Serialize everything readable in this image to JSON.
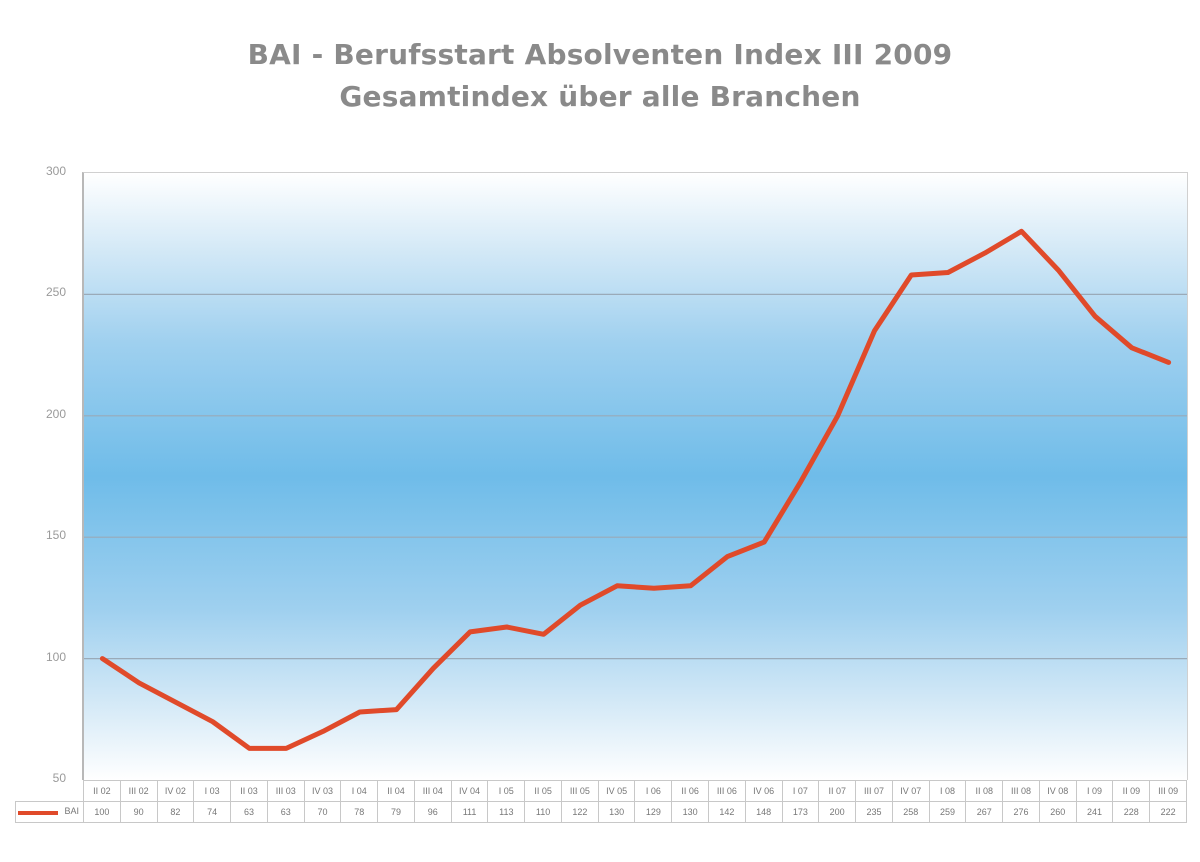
{
  "chart_data": {
    "type": "line",
    "title": "BAI - Berufsstart Absolventen Index III 2009",
    "subtitle": "Gesamtindex über alle Branchen",
    "xlabel": "",
    "ylabel": "",
    "ylim": [
      50,
      300
    ],
    "yticks": [
      50,
      100,
      150,
      200,
      250,
      300
    ],
    "grid": true,
    "legend_position": "bottom-left (data table)",
    "categories": [
      "II 02",
      "III 02",
      "IV 02",
      "I 03",
      "II 03",
      "III 03",
      "IV 03",
      "I 04",
      "II 04",
      "III 04",
      "IV 04",
      "I 05",
      "II 05",
      "III 05",
      "IV 05",
      "I 06",
      "II 06",
      "III 06",
      "IV 06",
      "I 07",
      "II 07",
      "III 07",
      "IV 07",
      "I 08",
      "II 08",
      "III 08",
      "IV 08",
      "I 09",
      "II 09",
      "III 09"
    ],
    "series": [
      {
        "name": "BAI",
        "color": "#e04a2a",
        "values": [
          100,
          90,
          82,
          74,
          63,
          63,
          70,
          78,
          79,
          96,
          111,
          113,
          110,
          122,
          130,
          129,
          130,
          142,
          148,
          173,
          200,
          235,
          258,
          259,
          267,
          276,
          260,
          241,
          228,
          222
        ]
      }
    ]
  },
  "header": {
    "title": "BAI - Berufsstart Absolventen Index III 2009",
    "subtitle": "Gesamtindex über alle Branchen"
  },
  "legend": {
    "label": "BAI"
  }
}
